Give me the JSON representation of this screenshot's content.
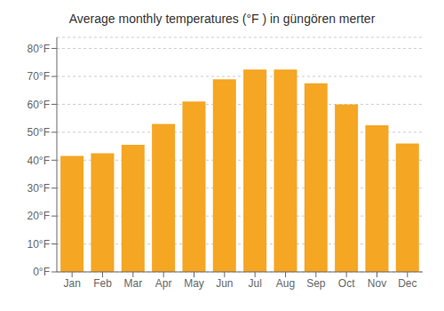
{
  "chart_data": {
    "type": "bar",
    "title": "Average monthly temperatures (°F ) in güngören merter",
    "categories": [
      "Jan",
      "Feb",
      "Mar",
      "Apr",
      "May",
      "Jun",
      "Jul",
      "Aug",
      "Sep",
      "Oct",
      "Nov",
      "Dec"
    ],
    "values": [
      41.5,
      42.5,
      45.5,
      53.0,
      61.0,
      69.0,
      72.5,
      72.5,
      67.5,
      60.0,
      52.5,
      46.0
    ],
    "color": "#F5A623",
    "ylim": [
      0,
      84
    ],
    "yticks": [
      {
        "value": 0,
        "label": "0°F"
      },
      {
        "value": 10,
        "label": "10°F"
      },
      {
        "value": 20,
        "label": "20°F"
      },
      {
        "value": 30,
        "label": "30°F"
      },
      {
        "value": 40,
        "label": "40°F"
      },
      {
        "value": 50,
        "label": "50°F"
      },
      {
        "value": 60,
        "label": "60°F"
      },
      {
        "value": 70,
        "label": "70°F"
      },
      {
        "value": 80,
        "label": "80°F"
      }
    ],
    "grid": true
  }
}
